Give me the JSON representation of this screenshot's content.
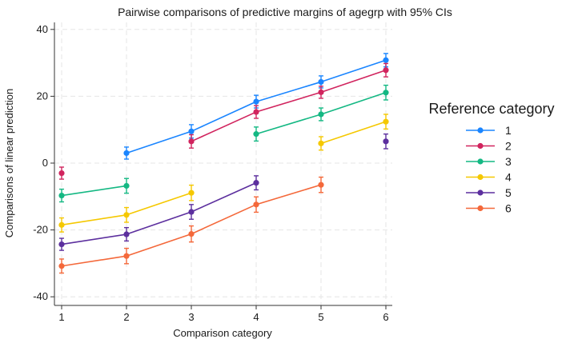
{
  "chart_data": {
    "type": "line",
    "title": "Pairwise comparisons of predictive margins of agegrp with 95% CIs",
    "xlabel": "Comparison category",
    "ylabel": "Comparisons of linear prediction",
    "x_ticks": [
      1,
      2,
      3,
      4,
      5,
      6
    ],
    "y_ticks": [
      -40,
      -20,
      0,
      20,
      40
    ],
    "xlim": [
      1,
      6
    ],
    "ylim": [
      -40,
      40
    ],
    "grid": true,
    "legend_title": "Reference category",
    "legend_position": "right",
    "series": [
      {
        "name": "1",
        "color": "#1a85ff",
        "x": [
          2,
          3,
          4,
          5,
          6
        ],
        "y": [
          3.0,
          9.5,
          18.4,
          24.3,
          30.8
        ],
        "ci_low": [
          1.2,
          7.5,
          16.5,
          22.5,
          28.8
        ],
        "ci_high": [
          4.8,
          11.5,
          20.3,
          26.1,
          32.8
        ]
      },
      {
        "name": "2",
        "color": "#d1245e",
        "x": [
          1,
          3,
          4,
          5,
          6
        ],
        "y": [
          -3.0,
          6.5,
          15.3,
          21.2,
          27.8
        ],
        "ci_low": [
          -4.8,
          4.5,
          13.4,
          19.4,
          25.8
        ],
        "ci_high": [
          -1.2,
          8.5,
          17.2,
          23.0,
          29.8
        ]
      },
      {
        "name": "3",
        "color": "#14b883",
        "x": [
          1,
          2,
          4,
          5,
          6
        ],
        "y": [
          -9.7,
          -6.8,
          8.7,
          14.6,
          21.1
        ],
        "ci_low": [
          -11.6,
          -9.0,
          6.6,
          12.7,
          18.9
        ],
        "ci_high": [
          -7.8,
          -4.6,
          10.8,
          16.5,
          23.3
        ]
      },
      {
        "name": "4",
        "color": "#f5c800",
        "x": [
          1,
          2,
          3,
          5,
          6
        ],
        "y": [
          -18.5,
          -15.5,
          -8.9,
          5.9,
          12.4
        ],
        "ci_low": [
          -20.6,
          -17.7,
          -11.2,
          3.9,
          10.2
        ],
        "ci_high": [
          -16.4,
          -13.3,
          -6.6,
          7.9,
          14.6
        ]
      },
      {
        "name": "5",
        "color": "#5c2f9e",
        "x": [
          1,
          2,
          3,
          4,
          6
        ],
        "y": [
          -24.3,
          -21.3,
          -14.6,
          -5.9,
          6.5
        ],
        "ci_low": [
          -26.1,
          -23.3,
          -16.8,
          -8.0,
          4.3
        ],
        "ci_high": [
          -22.5,
          -19.3,
          -12.4,
          -3.8,
          8.7
        ]
      },
      {
        "name": "6",
        "color": "#f4683a",
        "x": [
          1,
          2,
          3,
          4,
          5
        ],
        "y": [
          -30.8,
          -27.8,
          -21.2,
          -12.4,
          -6.5
        ],
        "ci_low": [
          -32.9,
          -30.1,
          -23.6,
          -14.7,
          -8.8
        ],
        "ci_high": [
          -28.7,
          -25.5,
          -18.8,
          -10.1,
          -4.2
        ]
      }
    ]
  }
}
